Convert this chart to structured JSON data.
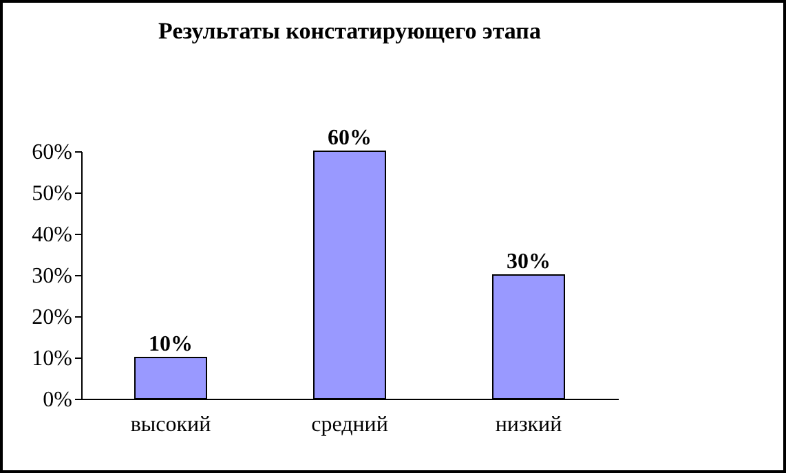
{
  "chart_data": {
    "type": "bar",
    "title": "Результаты констатирующего этапа",
    "categories": [
      "высокий",
      "средний",
      "низкий"
    ],
    "values": [
      10,
      60,
      30
    ],
    "color": "#9999ff",
    "value_labels": [
      "10%",
      "60%",
      "30%"
    ],
    "ylim": [
      0,
      60
    ],
    "yticks": [
      {
        "value": 0,
        "label": "0%"
      },
      {
        "value": 10,
        "label": "10%"
      },
      {
        "value": 20,
        "label": "20%"
      },
      {
        "value": 30,
        "label": "30%"
      },
      {
        "value": 40,
        "label": "40%"
      },
      {
        "value": 50,
        "label": "50%"
      },
      {
        "value": 60,
        "label": "60%"
      }
    ],
    "grid": false
  }
}
